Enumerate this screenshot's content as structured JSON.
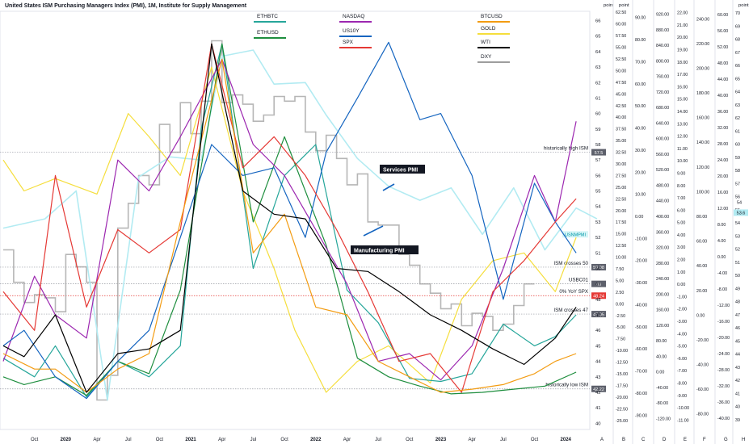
{
  "title": "United States ISM Purchasing Managers Index (PMI), 1M, Institute for Supply Management",
  "chart_data": {
    "type": "line",
    "title": "United States ISM Purchasing Managers Index (PMI), 1M, Institute for Supply Management",
    "x_ticks": [
      "Oct",
      "2020",
      "Apr",
      "Jul",
      "Oct",
      "2021",
      "Apr",
      "Jul",
      "Oct",
      "2022",
      "Apr",
      "Jul",
      "Oct",
      "2023",
      "Apr",
      "Jul",
      "Oct",
      "2024"
    ],
    "x_range": [
      "2019-07",
      "2024-03"
    ],
    "y_axis_label": "point",
    "y_ticks": [
      40,
      41,
      42,
      43,
      44,
      45,
      46,
      47,
      48,
      49,
      50,
      51,
      52,
      53,
      54,
      55,
      56,
      57,
      58,
      59,
      60,
      61,
      62,
      63,
      64,
      65,
      66
    ],
    "ylim": [
      39.6,
      66.6
    ],
    "secondary_axes": [
      {
        "id": "B",
        "unit": "point",
        "ticks": [
          "62.50",
          "60.00",
          "57.50",
          "55.00",
          "52.50",
          "50.00",
          "47.50",
          "45.00",
          "42.50",
          "40.00",
          "37.50",
          "35.00",
          "32.50",
          "30.00",
          "27.50",
          "25.00",
          "22.50",
          "20.00",
          "17.50",
          "15.00",
          "12.50",
          "10.00",
          "7.50",
          "5.00",
          "2.50",
          "0.00",
          "-2.50",
          "-5.00",
          "-7.50",
          "-10.00",
          "-12.50",
          "-15.00",
          "-17.50",
          "-20.00",
          "-22.50",
          "-25.00"
        ]
      },
      {
        "id": "C",
        "unit": "",
        "ticks": [
          "90.00",
          "80.00",
          "70.00",
          "60.00",
          "50.00",
          "40.00",
          "30.00",
          "20.00",
          "10.00",
          "0.00",
          "-10.00",
          "-20.00",
          "-30.00",
          "-40.00",
          "-50.00",
          "-60.00",
          "-70.00",
          "-80.00",
          "-90.00"
        ]
      },
      {
        "id": "D",
        "unit": "",
        "ticks": [
          "920.00",
          "880.00",
          "840.00",
          "800.00",
          "760.00",
          "720.00",
          "680.00",
          "640.00",
          "600.00",
          "560.00",
          "520.00",
          "480.00",
          "440.00",
          "400.00",
          "360.00",
          "320.00",
          "280.00",
          "240.00",
          "200.00",
          "160.00",
          "120.00",
          "80.00",
          "40.00",
          "0.00",
          "-40.00",
          "-80.00",
          "-120.00"
        ]
      },
      {
        "id": "E",
        "unit": "",
        "ticks": [
          "22.00",
          "21.00",
          "20.00",
          "19.00",
          "18.00",
          "17.00",
          "16.00",
          "15.00",
          "14.00",
          "13.00",
          "12.00",
          "11.00",
          "10.00",
          "9.00",
          "8.00",
          "7.00",
          "6.00",
          "5.00",
          "4.00",
          "3.00",
          "2.00",
          "1.00",
          "0.00",
          "-1.00",
          "-2.00",
          "-3.00",
          "-4.00",
          "-5.00",
          "-6.00",
          "-7.00",
          "-8.00",
          "-9.00",
          "-10.00",
          "-11.00"
        ]
      },
      {
        "id": "F",
        "unit": "",
        "ticks": [
          "240.00",
          "220.00",
          "200.00",
          "180.00",
          "160.00",
          "140.00",
          "120.00",
          "100.00",
          "80.00",
          "60.00",
          "40.00",
          "20.00",
          "0.00",
          "-20.00",
          "-40.00",
          "-60.00",
          "-80.00"
        ]
      },
      {
        "id": "G",
        "unit": "",
        "ticks": [
          "60.00",
          "56.00",
          "52.00",
          "48.00",
          "44.00",
          "40.00",
          "36.00",
          "32.00",
          "28.00",
          "24.00",
          "20.00",
          "16.00",
          "12.00",
          "8.00",
          "4.00",
          "0.00",
          "-4.00",
          "-8.00",
          "-12.00",
          "-16.00",
          "-20.00",
          "-24.00",
          "-28.00",
          "-32.00",
          "-36.00",
          "-40.00"
        ]
      },
      {
        "id": "H",
        "unit": "point",
        "ticks": [
          "70",
          "69",
          "68",
          "67",
          "66",
          "65",
          "64",
          "63",
          "62",
          "61",
          "60",
          "59",
          "58",
          "57",
          "56",
          "55",
          "54",
          "53",
          "52",
          "51",
          "50",
          "49",
          "48",
          "47",
          "46",
          "45",
          "44",
          "43",
          "42",
          "41",
          "40",
          "39"
        ]
      }
    ],
    "bottom_axis_letters": [
      "A",
      "B",
      "C",
      "D",
      "E",
      "F",
      "G",
      "H"
    ],
    "legend": [
      "ETHBTC",
      "ETHUSD",
      "NASDAQ",
      "US10Y",
      "SPX",
      "BTCUSD",
      "GOLD",
      "WTI",
      "DXY"
    ],
    "colors": {
      "ETHBTC": "#26a69a",
      "ETHUSD": "#1e8e3e",
      "NASDAQ": "#9c27b0",
      "US10Y": "#1565c0",
      "SPX": "#e53935",
      "BTCUSD": "#f39c12",
      "GOLD": "#f5de3c",
      "WTI": "#000000",
      "DXY": "#9e9e9e",
      "ServicesPMI": "#b2ebf2",
      "axisBadgeA": "#4dd0e1"
    },
    "reference_lines": [
      {
        "label": "historically high ISM",
        "value": 57.5,
        "badge": "57.5"
      },
      {
        "label": "ISM crosses 50",
        "value": 50.08,
        "badge": "50.08"
      },
      {
        "label": "USBC01",
        "value": 49,
        "badge": "49"
      },
      {
        "label": "0% YoY SPX",
        "value": 48.24,
        "badge": "48.24"
      },
      {
        "label": "ISM crosses 47",
        "value": 47.05,
        "badge": "47.05"
      },
      {
        "label": "historically low ISM",
        "value": 42.22,
        "badge": "42.22"
      }
    ],
    "last_values": {
      "USNMPMI": "",
      "H": "53.6",
      "H2": "54"
    },
    "series_label_ism": "USNMPMI",
    "annotations": [
      "Services PMI",
      "Manufacturing PMI"
    ],
    "ism_manufacturing": {
      "x": [
        "2019-07",
        "2019-08",
        "2019-09",
        "2019-10",
        "2019-11",
        "2019-12",
        "2020-01",
        "2020-02",
        "2020-03",
        "2020-04",
        "2020-05",
        "2020-06",
        "2020-07",
        "2020-08",
        "2020-09",
        "2020-10",
        "2020-11",
        "2020-12",
        "2021-01",
        "2021-02",
        "2021-03",
        "2021-04",
        "2021-05",
        "2021-06",
        "2021-07",
        "2021-08",
        "2021-09",
        "2021-10",
        "2021-11",
        "2021-12",
        "2022-01",
        "2022-02",
        "2022-03",
        "2022-04",
        "2022-05",
        "2022-06",
        "2022-07",
        "2022-08",
        "2022-09",
        "2022-10",
        "2022-11",
        "2022-12",
        "2023-01",
        "2023-02",
        "2023-03",
        "2023-04",
        "2023-05",
        "2023-06",
        "2023-07",
        "2023-08",
        "2023-09"
      ],
      "y": [
        51.2,
        49.1,
        47.8,
        48.3,
        48.1,
        47.2,
        50.9,
        50.1,
        49.1,
        41.5,
        43.1,
        52.6,
        54.2,
        56.0,
        55.4,
        59.3,
        57.5,
        60.7,
        58.7,
        60.8,
        64.7,
        60.7,
        61.2,
        60.6,
        59.5,
        59.9,
        61.1,
        60.8,
        61.1,
        58.8,
        57.6,
        58.6,
        57.1,
        55.4,
        56.1,
        53.0,
        52.8,
        52.8,
        50.9,
        50.2,
        49.0,
        48.4,
        47.4,
        47.7,
        46.3,
        47.1,
        46.9,
        46.0,
        46.4,
        47.6,
        49.0
      ]
    }
  }
}
